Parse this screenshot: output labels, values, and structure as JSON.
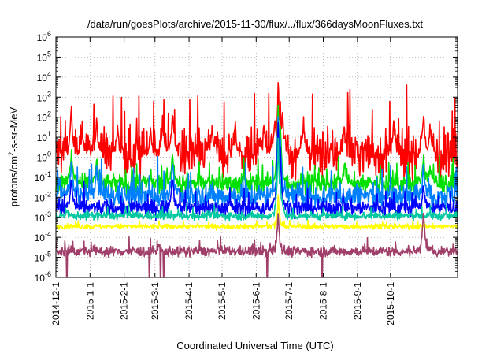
{
  "chart_data": {
    "type": "line",
    "title": "/data/run/goesPlots/archive/2015-11-30/flux/../flux/366daysMoonFluxes.txt",
    "xlabel": "Coordinated Universal Time (UTC)",
    "ylabel_parts": {
      "base": "protons/cm",
      "sup": "2",
      "rest": "-s-sr-MeV"
    },
    "x_range": [
      "2014-12-01",
      "2015-12-01"
    ],
    "x_ticks": [
      "2014-12-1",
      "2015-1-1",
      "2015-2-1",
      "2015-3-1",
      "2015-4-1",
      "2015-5-1",
      "2015-6-1",
      "2015-7-1",
      "2015-8-1",
      "2015-9-1",
      "2015-10-1"
    ],
    "y_scale": "log",
    "ylim": [
      1e-06,
      1000000.0
    ],
    "y_ticks": [
      {
        "base": "10",
        "exp": "-6"
      },
      {
        "base": "10",
        "exp": "-5"
      },
      {
        "base": "10",
        "exp": "-4"
      },
      {
        "base": "10",
        "exp": "-3"
      },
      {
        "base": "10",
        "exp": "-2"
      },
      {
        "base": "10",
        "exp": "-1"
      },
      {
        "base": "10",
        "exp": "0"
      },
      {
        "base": "10",
        "exp": "1"
      },
      {
        "base": "10",
        "exp": "2"
      },
      {
        "base": "10",
        "exp": "3"
      },
      {
        "base": "10",
        "exp": "4"
      },
      {
        "base": "10",
        "exp": "5"
      },
      {
        "base": "10",
        "exp": "6"
      }
    ],
    "grid": true,
    "legend": "none",
    "series": [
      {
        "color": "#ff0000",
        "baseline": 1.5,
        "spread": 1.2,
        "spikes": [
          [
            "2014-12-15",
            400
          ],
          [
            "2014-12-25",
            40
          ],
          [
            "2015-01-07",
            200
          ],
          [
            "2015-01-26",
            30
          ],
          [
            "2015-02-25",
            30
          ],
          [
            "2015-03-08",
            120
          ],
          [
            "2015-03-17",
            400
          ],
          [
            "2015-04-22",
            40
          ],
          [
            "2015-05-13",
            60
          ],
          [
            "2015-06-08",
            40
          ],
          [
            "2015-06-18",
            200
          ],
          [
            "2015-06-21",
            9000
          ],
          [
            "2015-06-23",
            600
          ],
          [
            "2015-06-25",
            300
          ],
          [
            "2015-07-14",
            80
          ],
          [
            "2015-08-20",
            40
          ],
          [
            "2015-10-04",
            60
          ],
          [
            "2015-10-31",
            300
          ],
          [
            "2015-11-06",
            40
          ]
        ]
      },
      {
        "color": "#00e000",
        "baseline": 0.05,
        "spread": 0.5,
        "spikes": [
          [
            "2014-12-15",
            3
          ],
          [
            "2015-01-07",
            1
          ],
          [
            "2015-03-17",
            3
          ],
          [
            "2015-06-21",
            700
          ],
          [
            "2015-06-23",
            30
          ],
          [
            "2015-08-20",
            0.5
          ],
          [
            "2015-10-31",
            2
          ],
          [
            "2015-11-06",
            0.5
          ]
        ]
      },
      {
        "color": "#0080ff",
        "baseline": 0.012,
        "spread": 0.6,
        "spikes": [
          [
            "2014-12-15",
            1
          ],
          [
            "2015-01-07",
            0.3
          ],
          [
            "2015-03-17",
            1
          ],
          [
            "2015-06-21",
            300
          ],
          [
            "2015-06-23",
            10
          ],
          [
            "2015-10-31",
            0.8
          ]
        ]
      },
      {
        "color": "#0000ff",
        "baseline": 0.003,
        "spread": 0.4,
        "spikes": [
          [
            "2014-12-15",
            0.1
          ],
          [
            "2015-03-17",
            0.2
          ],
          [
            "2015-06-21",
            100
          ],
          [
            "2015-06-23",
            3
          ],
          [
            "2015-10-31",
            0.05
          ]
        ]
      },
      {
        "color": "#00c8a0",
        "baseline": 0.0012,
        "spread": 0.2,
        "spikes": [
          [
            "2015-06-21",
            10
          ],
          [
            "2015-06-23",
            0.1
          ]
        ]
      },
      {
        "color": "#ffff00",
        "baseline": 0.00035,
        "spread": 0.12,
        "spikes": [
          [
            "2015-06-21",
            0.01
          ]
        ]
      },
      {
        "color": "#a0406a",
        "baseline": 2e-05,
        "spread": 0.25,
        "spikes": [
          [
            "2015-06-21",
            0.002
          ],
          [
            "2015-10-31",
            0.003
          ]
        ],
        "dips": [
          "2014-12-11",
          "2015-02-24",
          "2015-03-06",
          "2015-03-09",
          "2015-06-11",
          "2015-07-31"
        ]
      }
    ]
  }
}
